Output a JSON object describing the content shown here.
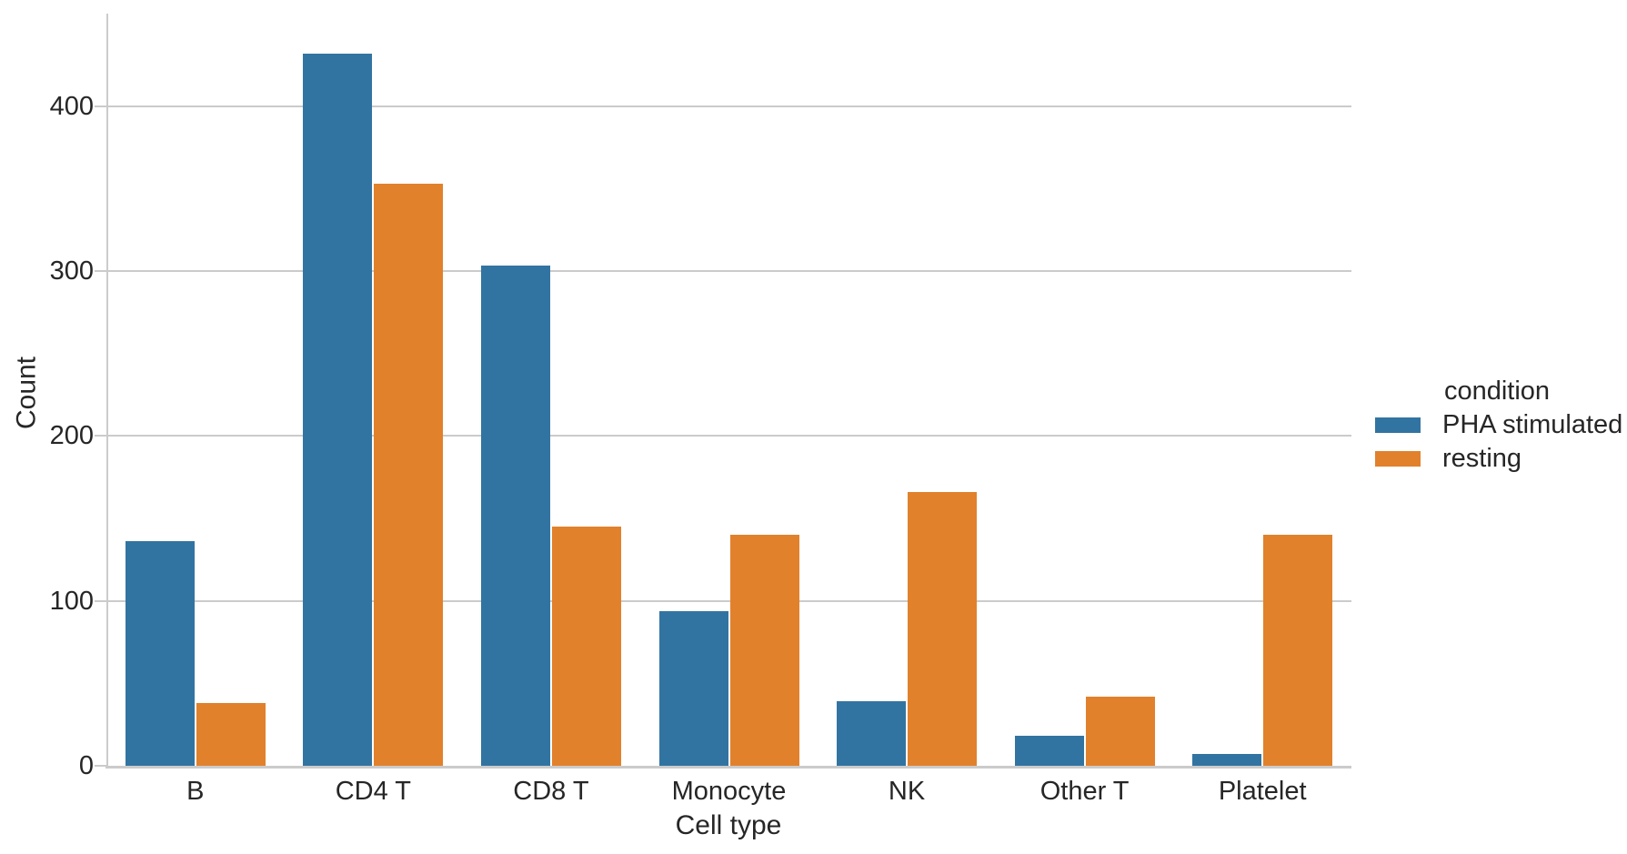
{
  "figure": {
    "background_color": "#ffffff",
    "text_color": "#262626",
    "grid_color": "#cbcbcb",
    "axis_color": "#cbcbcb"
  },
  "chart_data": {
    "type": "bar",
    "title": "",
    "xlabel": "Cell type",
    "ylabel": "Count",
    "categories": [
      "B",
      "CD4 T",
      "CD8 T",
      "Monocyte",
      "NK",
      "Other T",
      "Platelet"
    ],
    "series": [
      {
        "name": "PHA stimulated",
        "color": "#3274a1",
        "values": [
          136,
          432,
          303,
          94,
          39,
          18,
          7
        ]
      },
      {
        "name": "resting",
        "color": "#e1812c",
        "values": [
          38,
          353,
          145,
          140,
          166,
          42,
          140
        ]
      }
    ],
    "legend": {
      "title": "condition",
      "entries": [
        "PHA stimulated",
        "resting"
      ],
      "position": "right, vertically centered"
    },
    "yticks": [
      "0",
      "100",
      "200",
      "300",
      "400"
    ],
    "ylim": [
      0,
      456
    ],
    "xlim_note": "categorical axis, 7 groups",
    "grid": "horizontal gridlines at yticks, light gray, no top/right spines"
  }
}
